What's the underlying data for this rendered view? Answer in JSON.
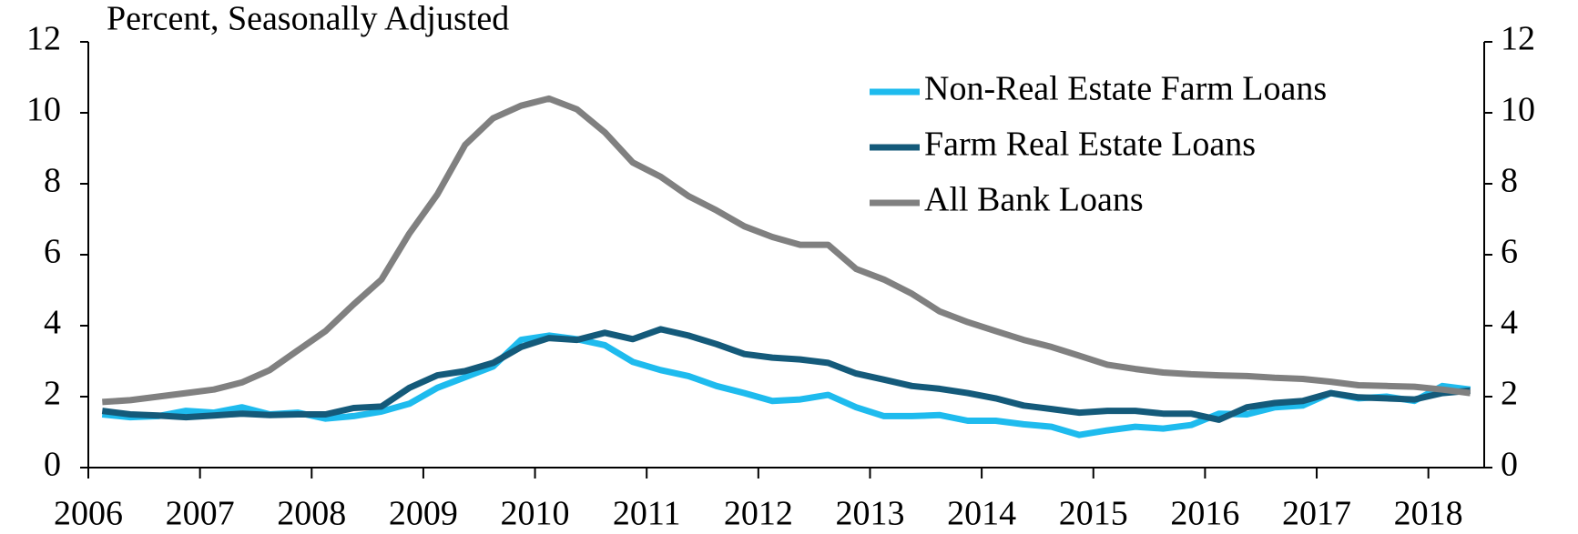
{
  "chart_data": {
    "type": "line",
    "title": "Percent, Seasonally Adjusted",
    "x": [
      2006.125,
      2006.375,
      2006.625,
      2006.875,
      2007.125,
      2007.375,
      2007.625,
      2007.875,
      2008.125,
      2008.375,
      2008.625,
      2008.875,
      2009.125,
      2009.375,
      2009.625,
      2009.875,
      2010.125,
      2010.375,
      2010.625,
      2010.875,
      2011.125,
      2011.375,
      2011.625,
      2011.875,
      2012.125,
      2012.375,
      2012.625,
      2012.875,
      2013.125,
      2013.375,
      2013.625,
      2013.875,
      2014.125,
      2014.375,
      2014.625,
      2014.875,
      2015.125,
      2015.375,
      2015.625,
      2015.875,
      2016.125,
      2016.375,
      2016.625,
      2016.875,
      2017.125,
      2017.375,
      2017.625,
      2017.875,
      2018.125,
      2018.375
    ],
    "series": [
      {
        "name": "Non-Real Estate Farm Loans",
        "color": "#1ebbee",
        "values": [
          1.5,
          1.42,
          1.45,
          1.6,
          1.55,
          1.7,
          1.5,
          1.55,
          1.38,
          1.45,
          1.58,
          1.8,
          2.25,
          2.55,
          2.85,
          3.6,
          3.72,
          3.62,
          3.45,
          2.98,
          2.75,
          2.58,
          2.3,
          2.1,
          1.88,
          1.92,
          2.05,
          1.7,
          1.45,
          1.45,
          1.48,
          1.32,
          1.32,
          1.22,
          1.15,
          0.92,
          1.05,
          1.15,
          1.1,
          1.2,
          1.52,
          1.5,
          1.7,
          1.75,
          2.1,
          1.95,
          2.0,
          1.88,
          2.3,
          2.2
        ]
      },
      {
        "name": "Farm Real Estate Loans",
        "color": "#145a7a",
        "values": [
          1.6,
          1.5,
          1.47,
          1.42,
          1.47,
          1.52,
          1.48,
          1.5,
          1.5,
          1.68,
          1.72,
          2.25,
          2.6,
          2.72,
          2.95,
          3.4,
          3.65,
          3.6,
          3.8,
          3.62,
          3.9,
          3.72,
          3.48,
          3.2,
          3.1,
          3.05,
          2.95,
          2.65,
          2.48,
          2.3,
          2.22,
          2.1,
          1.95,
          1.75,
          1.65,
          1.55,
          1.6,
          1.6,
          1.52,
          1.52,
          1.35,
          1.7,
          1.82,
          1.88,
          2.1,
          1.98,
          1.95,
          1.92,
          2.1,
          2.17
        ]
      },
      {
        "name": "All Bank Loans",
        "color": "#808080",
        "values": [
          1.85,
          1.9,
          2.0,
          2.1,
          2.2,
          2.4,
          2.75,
          3.3,
          3.85,
          4.6,
          5.3,
          6.6,
          7.7,
          9.1,
          9.85,
          10.2,
          10.4,
          10.1,
          9.45,
          8.6,
          8.2,
          7.65,
          7.25,
          6.8,
          6.5,
          6.28,
          6.28,
          5.6,
          5.3,
          4.9,
          4.4,
          4.1,
          3.85,
          3.6,
          3.4,
          3.15,
          2.9,
          2.78,
          2.68,
          2.63,
          2.6,
          2.58,
          2.53,
          2.5,
          2.42,
          2.32,
          2.3,
          2.28,
          2.2,
          2.1
        ]
      }
    ],
    "xlim": [
      2006,
      2018.5
    ],
    "xticks": [
      2006,
      2007,
      2008,
      2009,
      2010,
      2011,
      2012,
      2013,
      2014,
      2015,
      2016,
      2017,
      2018
    ],
    "ylim": [
      0,
      12
    ],
    "yticks": [
      0,
      2,
      4,
      6,
      8,
      10,
      12
    ],
    "y2lim": [
      0,
      12
    ],
    "y2ticks": [
      0,
      2,
      4,
      6,
      8,
      10,
      12
    ],
    "grid": false,
    "legend": "top-right"
  }
}
